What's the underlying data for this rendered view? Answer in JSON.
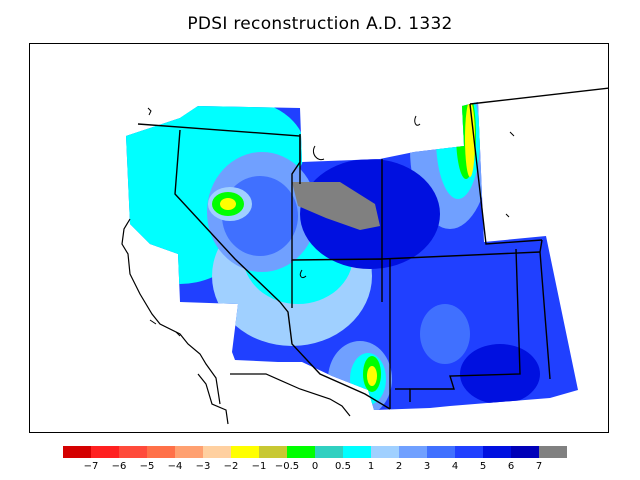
{
  "title": "PDSI reconstruction A.D. 1332",
  "colors": {
    "palette": [
      "#d40000",
      "#ff2020",
      "#ff4a3a",
      "#ff7048",
      "#ffa070",
      "#ffd0a0",
      "#ffff00",
      "#c8c832",
      "#00ff00",
      "#30d0c0",
      "#00ffff",
      "#a0d0ff",
      "#70a0ff",
      "#4070ff",
      "#2040ff",
      "#0010e0",
      "#0000b8",
      "#808080"
    ]
  },
  "legend": {
    "labels": [
      "−7",
      "−6",
      "−5",
      "−4",
      "−3",
      "−2",
      "−1",
      "−0.5",
      "0",
      "0.5",
      "1",
      "2",
      "3",
      "4",
      "5",
      "6",
      "7"
    ]
  }
}
